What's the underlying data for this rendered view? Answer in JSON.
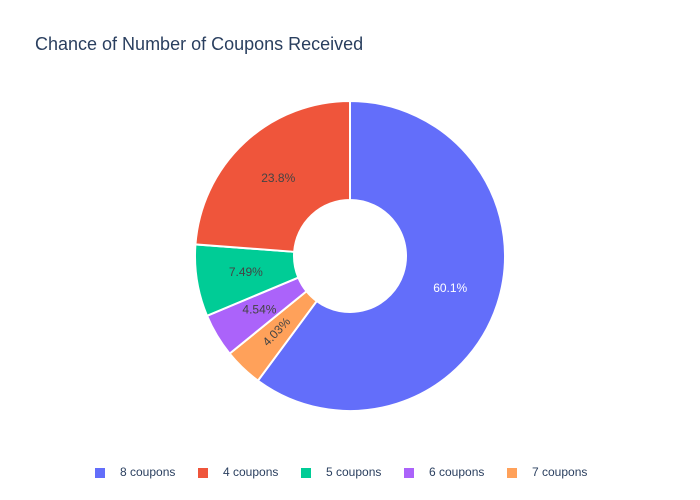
{
  "chart_data": {
    "type": "pie",
    "hole": true,
    "title": "Chance of Number of Coupons Received",
    "slices": [
      {
        "name": "8 coupons",
        "value": 60.1,
        "label": "60.1%",
        "color": "#636efa",
        "label_color": "#ffffff"
      },
      {
        "name": "7 coupons",
        "value": 4.03,
        "label": "4.03%",
        "color": "#ffa15a",
        "label_color": "#444444"
      },
      {
        "name": "6 coupons",
        "value": 4.54,
        "label": "4.54%",
        "color": "#ab63fa",
        "label_color": "#444444"
      },
      {
        "name": "5 coupons",
        "value": 7.49,
        "label": "7.49%",
        "color": "#00cc96",
        "label_color": "#444444"
      },
      {
        "name": "4 coupons",
        "value": 23.8,
        "label": "23.8%",
        "color": "#ef553b",
        "label_color": "#444444"
      }
    ],
    "legend": {
      "placement": "bottom",
      "entries": [
        {
          "name": "8 coupons",
          "color": "#636efa"
        },
        {
          "name": "4 coupons",
          "color": "#ef553b"
        },
        {
          "name": "5 coupons",
          "color": "#00cc96"
        },
        {
          "name": "6 coupons",
          "color": "#ab63fa"
        },
        {
          "name": "7 coupons",
          "color": "#ffa15a"
        }
      ]
    }
  }
}
